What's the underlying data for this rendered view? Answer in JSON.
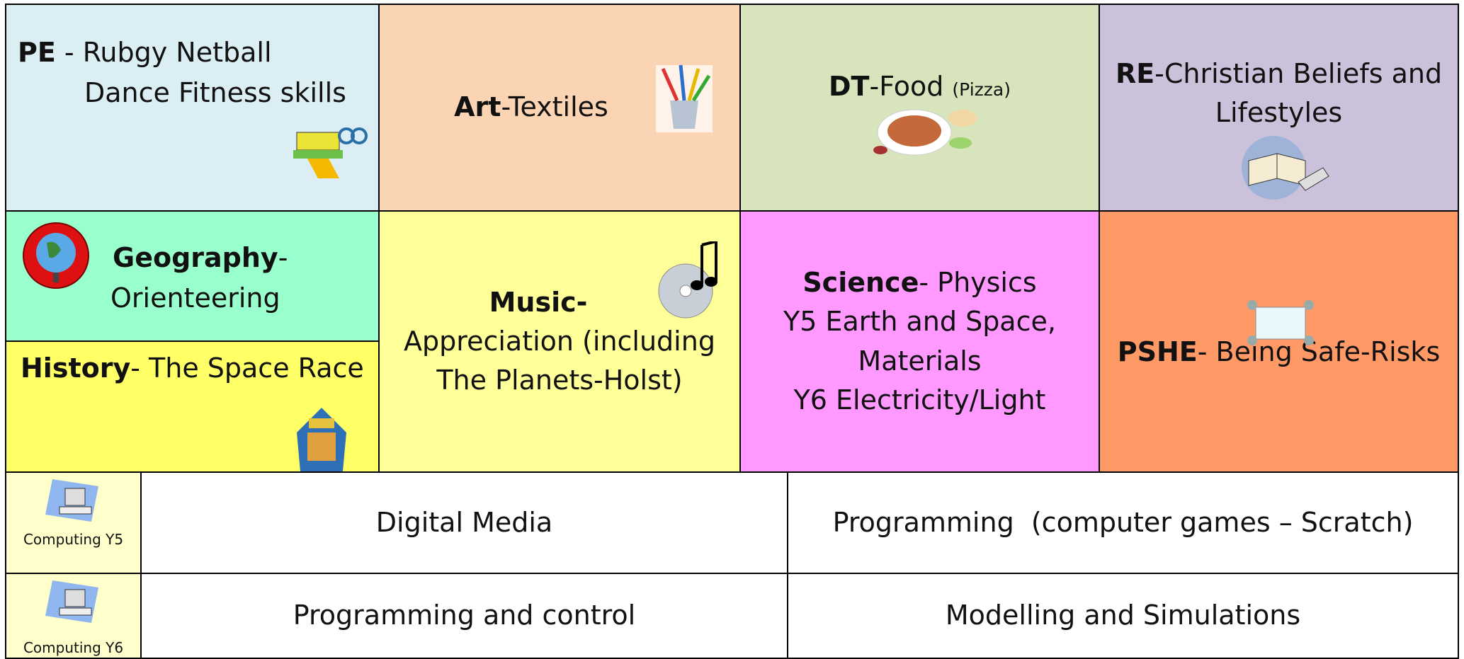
{
  "subjects": {
    "pe": {
      "subject": "PE",
      "line1": "- Rubgy Netball",
      "line2": "Dance Fitness skills"
    },
    "art": {
      "subject": "Art",
      "text": "-Textiles"
    },
    "dt": {
      "subject": "DT",
      "text": "-Food",
      "note": "(Pizza)"
    },
    "re": {
      "subject": "RE",
      "line1": "-Christian Beliefs and",
      "line2": "Lifestyles"
    },
    "geography": {
      "subject": "Geography",
      "dash": "-",
      "text": "Orienteering"
    },
    "history": {
      "subject": "History",
      "text": "- The Space Race"
    },
    "music": {
      "subject": "Music-",
      "line1": "Appreciation (including",
      "line2": "The Planets-Holst)"
    },
    "science": {
      "subject": "Science",
      "text": "- Physics",
      "lines": [
        "Y5 Earth and Space,",
        "Materials",
        "Y6 Electricity/Light"
      ]
    },
    "pshe": {
      "subject": "PSHE",
      "text": "- Being Safe-Risks"
    }
  },
  "computing": [
    {
      "label": "Computing Y5",
      "units": [
        "Digital Media",
        "Programming  (computer games – Scratch)"
      ]
    },
    {
      "label": "Computing Y6",
      "units": [
        "Programming and control",
        "Modelling and Simulations"
      ]
    }
  ]
}
